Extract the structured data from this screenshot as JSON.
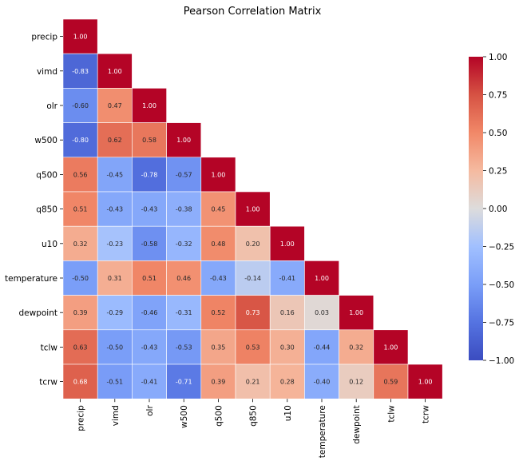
{
  "chart_data": {
    "type": "heatmap",
    "title": "Pearson Correlation Matrix",
    "xlabel": "",
    "ylabel": "",
    "variables": [
      "precip",
      "vimd",
      "olr",
      "w500",
      "q500",
      "q850",
      "u10",
      "temperature",
      "dewpoint",
      "tclw",
      "tcrw"
    ],
    "mask": "upper-triangle (strict) hidden",
    "values": [
      [
        1.0
      ],
      [
        -0.83,
        1.0
      ],
      [
        -0.6,
        0.47,
        1.0
      ],
      [
        -0.8,
        0.62,
        0.58,
        1.0
      ],
      [
        0.56,
        -0.45,
        -0.78,
        -0.57,
        1.0
      ],
      [
        0.51,
        -0.43,
        -0.43,
        -0.38,
        0.45,
        1.0
      ],
      [
        0.32,
        -0.23,
        -0.58,
        -0.32,
        0.48,
        0.2,
        1.0
      ],
      [
        -0.5,
        0.31,
        0.51,
        0.46,
        -0.43,
        -0.14,
        -0.41,
        1.0
      ],
      [
        0.39,
        -0.29,
        -0.46,
        -0.31,
        0.52,
        0.73,
        0.16,
        0.03,
        1.0
      ],
      [
        0.63,
        -0.5,
        -0.43,
        -0.53,
        0.35,
        0.53,
        0.3,
        -0.44,
        0.32,
        1.0
      ],
      [
        0.68,
        -0.51,
        -0.41,
        -0.71,
        0.39,
        0.21,
        0.28,
        -0.4,
        0.12,
        0.59,
        1.0
      ]
    ],
    "annotation_format": "0.00",
    "colormap": "coolwarm",
    "vmin": -1.0,
    "vmax": 1.0,
    "colorbar": {
      "placement": "right",
      "ticks": [
        1.0,
        0.75,
        0.5,
        0.25,
        0.0,
        -0.25,
        -0.5,
        -0.75,
        -1.0
      ],
      "tick_labels": [
        "1.00",
        "0.75",
        "0.50",
        "0.25",
        "0.00",
        "−0.25",
        "−0.50",
        "−0.75",
        "−1.00"
      ]
    },
    "grid": false
  }
}
